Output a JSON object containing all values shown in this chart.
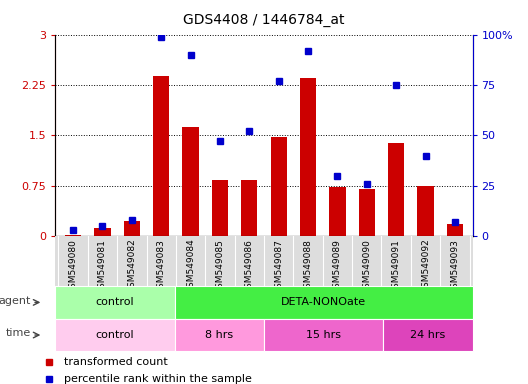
{
  "title": "GDS4408 / 1446784_at",
  "samples": [
    "GSM549080",
    "GSM549081",
    "GSM549082",
    "GSM549083",
    "GSM549084",
    "GSM549085",
    "GSM549086",
    "GSM549087",
    "GSM549088",
    "GSM549089",
    "GSM549090",
    "GSM549091",
    "GSM549092",
    "GSM549093"
  ],
  "transformed_count": [
    0.02,
    0.12,
    0.22,
    2.38,
    1.62,
    0.83,
    0.83,
    1.47,
    2.35,
    0.73,
    0.7,
    1.38,
    0.75,
    0.18
  ],
  "percentile_rank": [
    3,
    5,
    8,
    99,
    90,
    47,
    52,
    77,
    92,
    30,
    26,
    75,
    40,
    7
  ],
  "bar_color": "#cc0000",
  "dot_color": "#0000cc",
  "ylim_left": [
    0,
    3
  ],
  "ylim_right": [
    0,
    100
  ],
  "yticks_left": [
    0,
    0.75,
    1.5,
    2.25,
    3
  ],
  "yticks_right": [
    0,
    25,
    50,
    75,
    100
  ],
  "ytick_labels_left": [
    "0",
    "0.75",
    "1.5",
    "2.25",
    "3"
  ],
  "ytick_labels_right": [
    "0",
    "25",
    "50",
    "75",
    "100%"
  ],
  "agent_groups": [
    {
      "label": "control",
      "start": 0,
      "end": 4,
      "color": "#aaffaa"
    },
    {
      "label": "DETA-NONOate",
      "start": 4,
      "end": 14,
      "color": "#44ee44"
    }
  ],
  "time_groups": [
    {
      "label": "control",
      "start": 0,
      "end": 4,
      "color": "#ffccee"
    },
    {
      "label": "8 hrs",
      "start": 4,
      "end": 7,
      "color": "#ff99dd"
    },
    {
      "label": "15 hrs",
      "start": 7,
      "end": 11,
      "color": "#ee66cc"
    },
    {
      "label": "24 hrs",
      "start": 11,
      "end": 14,
      "color": "#dd44bb"
    }
  ],
  "legend_item1_label": "transformed count",
  "legend_item2_label": "percentile rank within the sample",
  "grid_color": "black",
  "agent_label": "agent",
  "time_label": "time",
  "tick_color_left": "#cc0000",
  "tick_color_right": "#0000cc",
  "sample_bg_color": "#dddddd"
}
